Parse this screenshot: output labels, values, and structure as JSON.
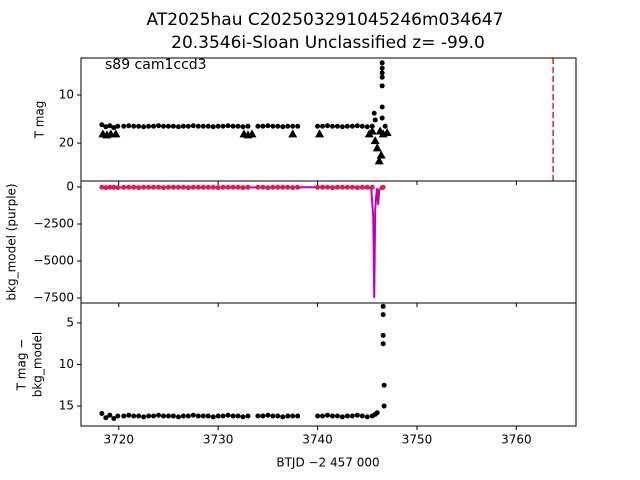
{
  "chart_data": [
    {
      "type": "scatter",
      "title": "AT2025hau  C202503291045246m034647",
      "subtitle": "20.3546i-Sloan Unclassified z= -99.0",
      "annotation": "s89 cam1ccd3",
      "ylabel": [
        "T mag"
      ],
      "xlim": [
        3716.2,
        3766
      ],
      "xticks": [
        3720,
        3730,
        3740,
        3750,
        3760
      ],
      "ylim": [
        27.9,
        2.3
      ],
      "yticks": [
        10,
        20
      ],
      "vlines": [
        {
          "x": 3763.7,
          "color": "#d62728",
          "dashed": true
        }
      ],
      "series": [
        {
          "color": "#000000",
          "marker": "circle",
          "x": [
            3718.3,
            3718.7,
            3719.1,
            3719.5,
            3719.9,
            3720.5,
            3721,
            3721.5,
            3722,
            3722.5,
            3723,
            3723.5,
            3724,
            3724.5,
            3725,
            3725.5,
            3726,
            3726.5,
            3727,
            3727.5,
            3728,
            3728.5,
            3729,
            3729.5,
            3730,
            3730.5,
            3731,
            3731.5,
            3732,
            3732.5,
            3733,
            3734,
            3734.5,
            3735,
            3735.5,
            3736,
            3736.5,
            3737,
            3737.5,
            3738,
            3740,
            3740.5,
            3741,
            3741.5,
            3742,
            3742.5,
            3743,
            3743.5,
            3744,
            3744.5,
            3745,
            3745.5,
            3745.7,
            3745.8,
            3746.5,
            3746.5,
            3746.5,
            3746.5,
            3746.5,
            3746.5,
            3746.5,
            3746.8
          ],
          "values": [
            16.2,
            16.6,
            16.4,
            16.8,
            16.5,
            16.5,
            16.4,
            16.5,
            16.5,
            16.6,
            16.5,
            16.5,
            16.4,
            16.5,
            16.5,
            16.5,
            16.6,
            16.5,
            16.5,
            16.4,
            16.5,
            16.5,
            16.5,
            16.6,
            16.5,
            16.5,
            16.4,
            16.5,
            16.5,
            16.6,
            16.5,
            16.5,
            16.5,
            16.4,
            16.5,
            16.5,
            16.6,
            16.5,
            16.5,
            16.5,
            16.5,
            16.5,
            16.4,
            16.5,
            16.5,
            16.6,
            16.5,
            16.5,
            16.4,
            16.5,
            16.6,
            16.5,
            13.8,
            15.2,
            3.3,
            4.4,
            5.4,
            6.3,
            8.1,
            12.5,
            14.8,
            16.5
          ]
        },
        {
          "color": "#000000",
          "marker": "triangle",
          "x": [
            3718.4,
            3718.8,
            3719.2,
            3719.7,
            3732.6,
            3733.0,
            3733.4,
            3737.5,
            3740.2,
            3745.2,
            3745.5,
            3745.8,
            3746.0,
            3746.2,
            3746.3,
            3746.4,
            3746.6,
            3747.0
          ],
          "values": [
            18.1,
            18.3,
            18.1,
            18.1,
            18.1,
            18.3,
            18.1,
            18.1,
            18.1,
            18.1,
            17.5,
            19.5,
            21,
            23.7,
            17.5,
            22.5,
            18.1,
            17.8
          ]
        }
      ]
    },
    {
      "type": "scatter",
      "ylabel": [
        "bkg_model (purple)"
      ],
      "xlim": [
        3716.2,
        3766
      ],
      "xticks": [
        3720,
        3730,
        3740,
        3750,
        3760
      ],
      "ylim": [
        -7838,
        405
      ],
      "yticks": [
        0,
        {
          "value": -2500,
          "label": "−2500"
        },
        {
          "value": -5000,
          "label": "−5000"
        },
        {
          "value": -7500,
          "label": "−7500"
        }
      ],
      "series": [
        {
          "color": "#c000c0",
          "marker": "line",
          "x": [
            3718.3,
            3719.9,
            3720.5,
            3726,
            3733,
            3734,
            3738,
            3740,
            3744,
            3745.4,
            3745.6,
            3745.7,
            3745.8,
            3745.9,
            3746.0,
            3746.1,
            3746.2,
            3746.5
          ],
          "values": [
            -60,
            -40,
            -20,
            -20,
            -30,
            -20,
            -20,
            -20,
            -20,
            -100,
            -2000,
            -7500,
            -1500,
            -600,
            -80,
            -1200,
            -200,
            -40
          ]
        },
        {
          "color": "#e8174f",
          "marker": "circle",
          "x": [
            3718.3,
            3718.7,
            3719.1,
            3719.5,
            3719.9,
            3720.5,
            3721,
            3721.5,
            3722,
            3722.5,
            3723,
            3723.5,
            3724,
            3724.5,
            3725,
            3725.5,
            3726,
            3726.5,
            3727,
            3727.5,
            3728,
            3728.5,
            3729,
            3729.5,
            3730,
            3730.5,
            3731,
            3731.5,
            3732,
            3732.5,
            3733,
            3734,
            3734.5,
            3735,
            3735.5,
            3736,
            3736.5,
            3737,
            3737.5,
            3738,
            3740,
            3740.5,
            3741,
            3741.5,
            3742,
            3742.5,
            3743,
            3743.5,
            3744,
            3744.5,
            3745,
            3745.5,
            3746.5,
            3746.6
          ],
          "values": [
            -20,
            -40,
            -20,
            -20,
            -40,
            -20,
            -20,
            -20,
            -40,
            -20,
            -20,
            -20,
            -20,
            -40,
            -20,
            -20,
            -20,
            -20,
            -40,
            -20,
            -20,
            -20,
            -20,
            -20,
            -40,
            -20,
            -20,
            -20,
            -20,
            -40,
            -20,
            -20,
            -20,
            -40,
            -20,
            -20,
            -20,
            -20,
            -40,
            -20,
            -20,
            -20,
            -20,
            -40,
            -20,
            -20,
            -20,
            -20,
            -40,
            -20,
            -20,
            -20,
            -40,
            -20
          ]
        }
      ]
    },
    {
      "type": "scatter",
      "ylabel": [
        "T mag −",
        "bkg_model"
      ],
      "xlabel": "BTJD −2 457 000",
      "xlim": [
        3716.2,
        3766
      ],
      "xticks": [
        3720,
        3730,
        3740,
        3750,
        3760
      ],
      "ylim": [
        17.4,
        2.6
      ],
      "yticks": [
        5,
        10,
        15
      ],
      "series": [
        {
          "color": "#000000",
          "marker": "circle",
          "x": [
            3718.3,
            3718.7,
            3719.1,
            3719.5,
            3719.9,
            3720.5,
            3721,
            3721.5,
            3722,
            3722.5,
            3723,
            3723.5,
            3724,
            3724.5,
            3725,
            3725.5,
            3726,
            3726.5,
            3727,
            3727.5,
            3728,
            3728.5,
            3729,
            3729.5,
            3730,
            3730.5,
            3731,
            3731.5,
            3732,
            3732.5,
            3733,
            3734,
            3734.5,
            3735,
            3735.5,
            3736,
            3736.5,
            3737,
            3737.5,
            3738,
            3740,
            3740.5,
            3741,
            3741.5,
            3742,
            3742.5,
            3743,
            3743.5,
            3744,
            3744.5,
            3745,
            3745.5,
            3745.8,
            3746.0,
            3746.6,
            3746.6,
            3746.6,
            3746.6,
            3746.7,
            3746.7
          ],
          "values": [
            15.9,
            16.4,
            16.1,
            16.5,
            16.2,
            16.2,
            16.1,
            16.2,
            16.2,
            16.3,
            16.2,
            16.2,
            16.1,
            16.2,
            16.2,
            16.2,
            16.3,
            16.2,
            16.2,
            16.1,
            16.2,
            16.2,
            16.2,
            16.3,
            16.2,
            16.2,
            16.1,
            16.2,
            16.2,
            16.3,
            16.2,
            16.2,
            16.2,
            16.1,
            16.2,
            16.2,
            16.3,
            16.2,
            16.2,
            16.2,
            16.2,
            16.2,
            16.1,
            16.2,
            16.2,
            16.3,
            16.2,
            16.2,
            16.1,
            16.2,
            16.3,
            16.2,
            16.0,
            15.8,
            3.0,
            4.0,
            6.5,
            7.5,
            12.5,
            15.0
          ]
        }
      ]
    }
  ]
}
